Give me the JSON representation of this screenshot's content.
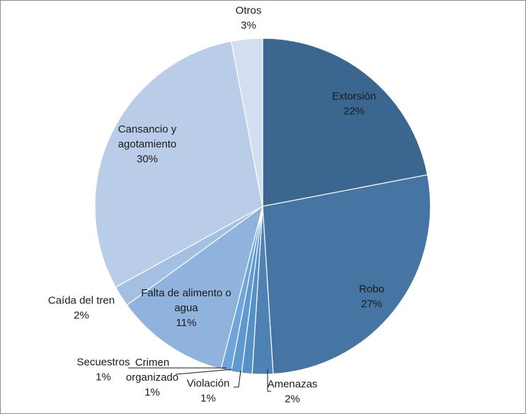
{
  "chart_data": {
    "type": "pie",
    "title": "",
    "slices": [
      {
        "label": [
          "Extorsión"
        ],
        "value": 22,
        "percent": "22%",
        "color": "#3b668f"
      },
      {
        "label": [
          "Robo"
        ],
        "value": 27,
        "percent": "27%",
        "color": "#4675a3"
      },
      {
        "label": [
          "Amenazas"
        ],
        "value": 2,
        "percent": "2%",
        "color": "#4e82b4"
      },
      {
        "label": [
          "Violación"
        ],
        "value": 1,
        "percent": "1%",
        "color": "#5690c6"
      },
      {
        "label": [
          "Crimen",
          "organizado"
        ],
        "value": 1,
        "percent": "1%",
        "color": "#6099d2"
      },
      {
        "label": [
          "Secuestros"
        ],
        "value": 1,
        "percent": "1%",
        "color": "#70a5dc"
      },
      {
        "label": [
          "Falta de alimento o",
          "agua"
        ],
        "value": 11,
        "percent": "11%",
        "color": "#8fb3dd"
      },
      {
        "label": [
          "Caída del tren"
        ],
        "value": 2,
        "percent": "2%",
        "color": "#a3c0e3"
      },
      {
        "label": [
          "Cansancio y",
          "agotamiento"
        ],
        "value": 30,
        "percent": "30%",
        "color": "#b9cde8"
      },
      {
        "label": [
          "Otros"
        ],
        "value": 3,
        "percent": "3%",
        "color": "#d3dff0"
      }
    ]
  }
}
